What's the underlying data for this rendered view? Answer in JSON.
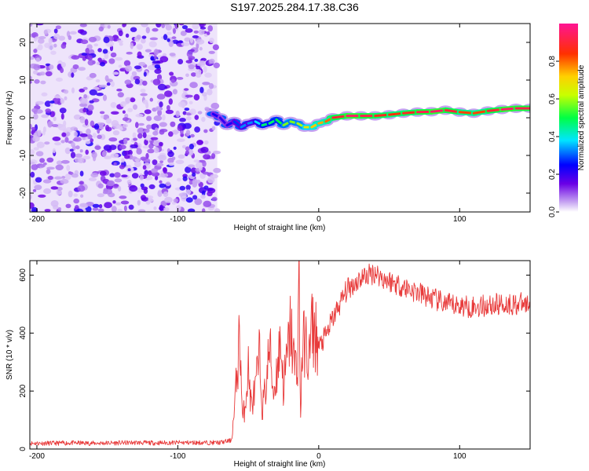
{
  "title": "S197.2025.284.17.38.C36",
  "chart_data": [
    {
      "type": "heatmap",
      "name": "spectrogram",
      "xlabel": "Height of straight line (km)",
      "ylabel": "Frequency (Hz)",
      "xlim": [
        -205,
        150
      ],
      "ylim": [
        -25,
        25
      ],
      "xticks": [
        -200,
        -100,
        0,
        100
      ],
      "yticks": [
        -20,
        -10,
        0,
        10,
        20
      ],
      "colorbar": {
        "label": "Normalized spectral amplitude",
        "range": [
          0.0,
          1.0
        ],
        "ticks": [
          "0.0",
          "0.2",
          "0.4",
          "0.6",
          "0.8"
        ],
        "tick_values": [
          0.0,
          0.2,
          0.4,
          0.6,
          0.8
        ]
      },
      "noise_region_x": [
        -205,
        -72
      ],
      "signal_track": {
        "x": [
          -75,
          -70,
          -65,
          -60,
          -55,
          -50,
          -45,
          -40,
          -35,
          -30,
          -25,
          -20,
          -15,
          -10,
          -5,
          0,
          5,
          10,
          20,
          30,
          40,
          50,
          60,
          70,
          80,
          90,
          100,
          110,
          120,
          130,
          140,
          150
        ],
        "frequency": [
          1.0,
          0.0,
          -2.0,
          -1.0,
          -2.5,
          -1.5,
          -1.0,
          -2.0,
          -1.5,
          -0.5,
          -2.0,
          -1.0,
          -1.5,
          -2.5,
          -2.5,
          -1.5,
          -1.0,
          0.0,
          0.5,
          0.5,
          0.5,
          0.8,
          1.2,
          1.5,
          1.6,
          2.0,
          1.5,
          1.2,
          1.8,
          2.2,
          2.5,
          2.5
        ],
        "amplitude": [
          0.25,
          0.2,
          0.2,
          0.25,
          0.3,
          0.35,
          0.3,
          0.45,
          0.5,
          0.45,
          0.55,
          0.6,
          0.55,
          0.65,
          0.7,
          0.75,
          0.75,
          0.85,
          0.95,
          0.95,
          0.9,
          0.85,
          0.85,
          0.9,
          0.95,
          0.95,
          0.85,
          0.8,
          0.85,
          0.95,
          0.95,
          0.9
        ]
      }
    },
    {
      "type": "line",
      "name": "snr",
      "xlabel": "Height of straight line (km)",
      "ylabel": "SNR (10 * v/v)",
      "xlim": [
        -205,
        150
      ],
      "ylim": [
        0,
        650
      ],
      "xticks": [
        -200,
        -100,
        0,
        100
      ],
      "yticks": [
        0,
        200,
        400,
        600
      ],
      "color": "#e83a3a",
      "series": [
        {
          "name": "SNR",
          "x": [
            -205,
            -190,
            -175,
            -160,
            -145,
            -130,
            -115,
            -100,
            -85,
            -70,
            -62,
            -60,
            -58,
            -56,
            -54,
            -52,
            -50,
            -48,
            -45,
            -42,
            -40,
            -37,
            -35,
            -32,
            -30,
            -27,
            -25,
            -22,
            -20,
            -17,
            -15,
            -14,
            -13,
            -12,
            -10,
            -7,
            -5,
            -2,
            0,
            5,
            10,
            15,
            20,
            25,
            30,
            35,
            40,
            45,
            50,
            55,
            60,
            65,
            70,
            75,
            80,
            85,
            90,
            95,
            100,
            110,
            120,
            130,
            140,
            150
          ],
          "values": [
            20,
            20,
            21,
            20,
            21,
            22,
            21,
            22,
            22,
            22,
            30,
            120,
            260,
            400,
            90,
            170,
            280,
            150,
            200,
            320,
            140,
            230,
            360,
            190,
            260,
            380,
            210,
            330,
            420,
            280,
            300,
            630,
            90,
            310,
            380,
            300,
            420,
            390,
            350,
            390,
            450,
            500,
            550,
            570,
            590,
            600,
            610,
            590,
            580,
            570,
            560,
            550,
            540,
            530,
            520,
            510,
            500,
            495,
            495,
            490,
            495,
            500,
            500,
            500
          ]
        }
      ]
    }
  ]
}
